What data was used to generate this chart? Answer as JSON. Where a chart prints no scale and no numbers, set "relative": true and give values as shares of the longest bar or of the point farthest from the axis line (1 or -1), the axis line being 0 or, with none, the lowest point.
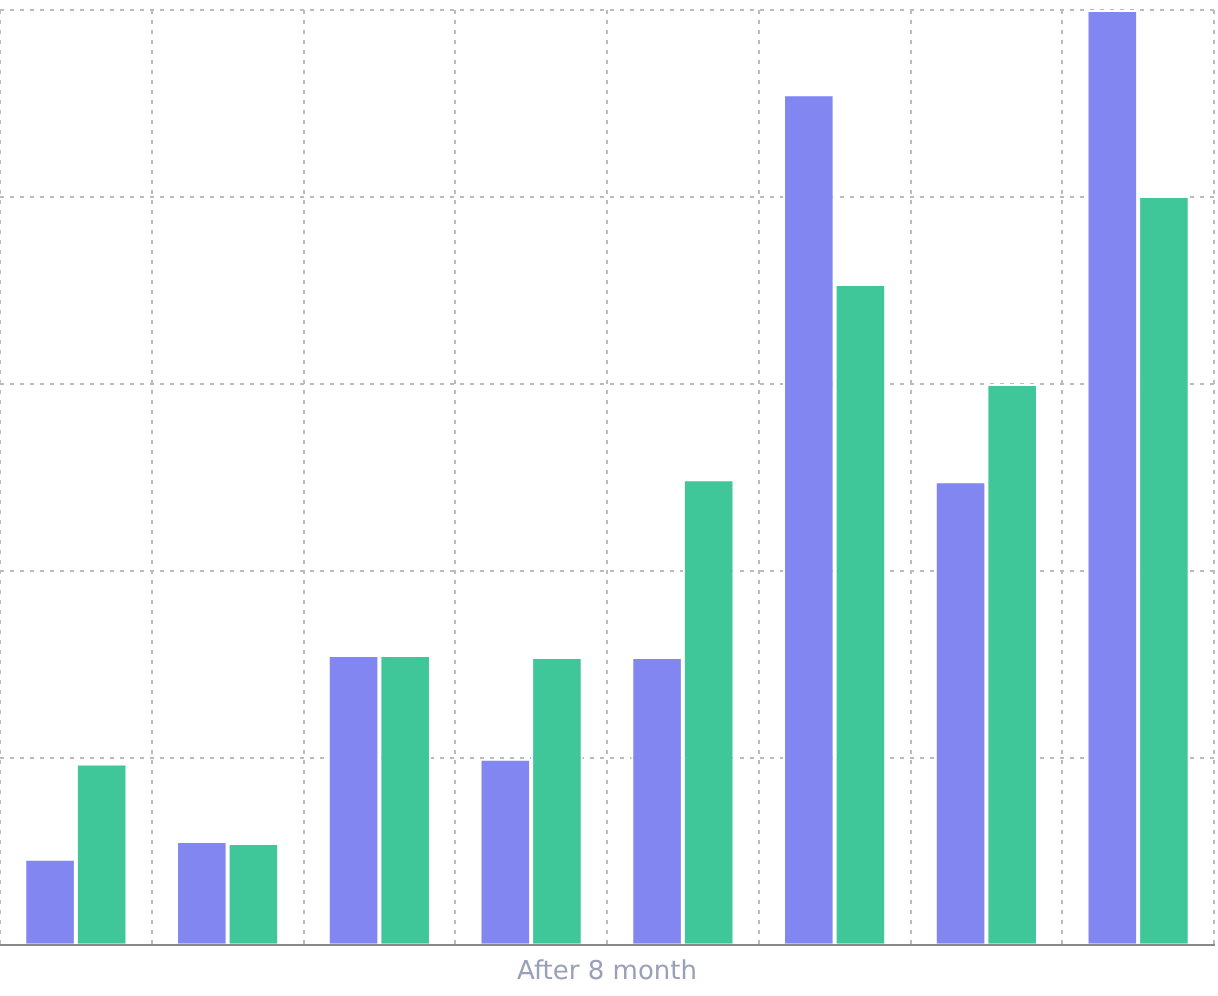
{
  "chart_data": {
    "type": "bar",
    "relative": true,
    "xlabel": "After 8 month",
    "categories": [
      null,
      null,
      null,
      null,
      null,
      null,
      null,
      null
    ],
    "grid": true,
    "series": [
      {
        "color": "#8186f0",
        "values": [
          0.092,
          0.111,
          0.31,
          0.199,
          0.308,
          0.91,
          0.496,
          1
        ]
      },
      {
        "color": "#3fc79a",
        "values": [
          0.194,
          0.109,
          0.31,
          0.308,
          0.498,
          0.707,
          0.6,
          0.801
        ]
      }
    ]
  }
}
